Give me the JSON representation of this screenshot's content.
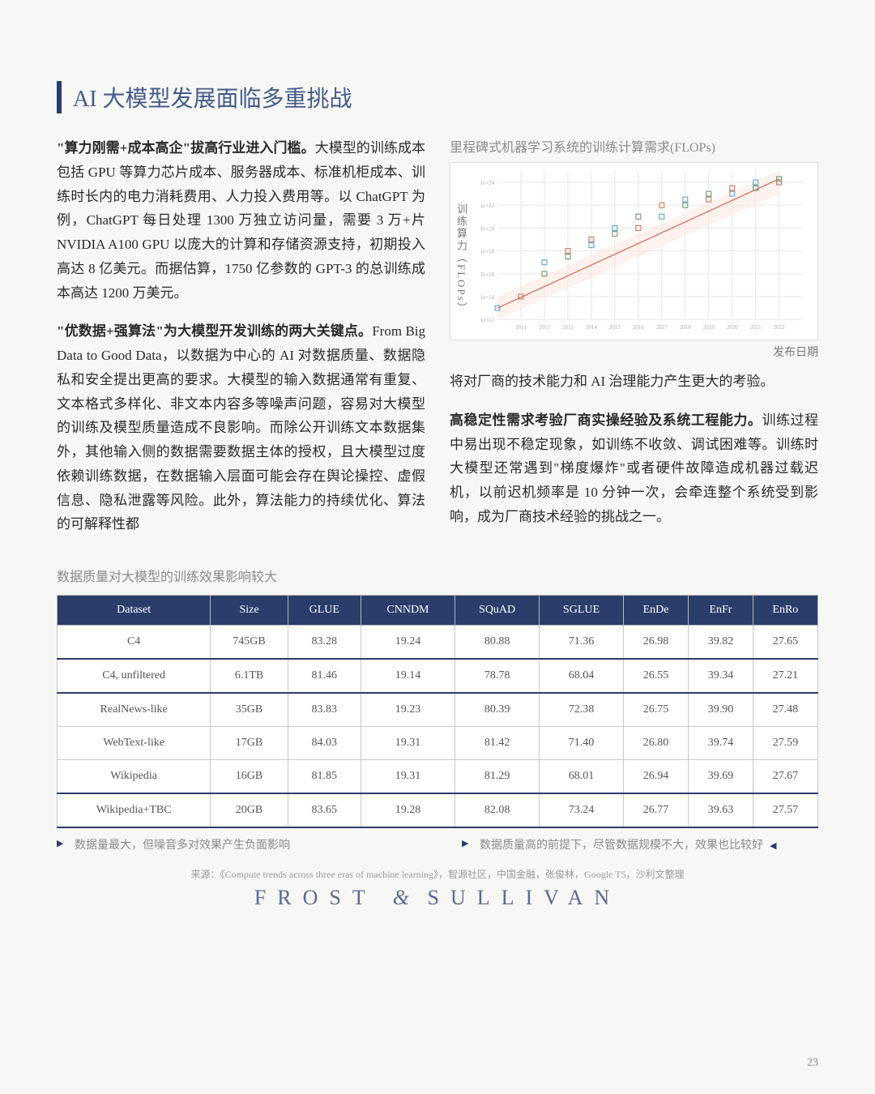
{
  "title": "AI 大模型发展面临多重挑战",
  "left_paras": [
    {
      "lead": "\"算力刚需+成本高企\"拔高行业进入门槛。",
      "body": "大模型的训练成本包括 GPU 等算力芯片成本、服务器成本、标准机柜成本、训练时长内的电力消耗费用、人力投入费用等。以 ChatGPT 为例，ChatGPT 每日处理 1300 万独立访问量，需要 3 万+片 NVIDIA A100 GPU 以庞大的计算和存储资源支持，初期投入高达 8 亿美元。而据估算，1750 亿参数的 GPT-3 的总训练成本高达 1200 万美元。"
    },
    {
      "lead": "\"优数据+强算法\"为大模型开发训练的两大关键点。",
      "body": "From Big Data to Good Data，以数据为中心的 AI 对数据质量、数据隐私和安全提出更高的要求。大模型的输入数据通常有重复、文本格式多样化、非文本内容多等噪声问题，容易对大模型的训练及模型质量造成不良影响。而除公开训练文本数据集外，其他输入侧的数据需要数据主体的授权，且大模型过度依赖训练数据，在数据输入层面可能会存在舆论操控、虚假信息、隐私泄露等风险。此外，算法能力的持续优化、算法的可解释性都"
    }
  ],
  "right_cont": "将对厂商的技术能力和 AI 治理能力产生更大的考验。",
  "right_para": {
    "lead": "高稳定性需求考验厂商实操经验及系统工程能力。",
    "body": "训练过程中易出现不稳定现象，如训练不收敛、调试困难等。训练时大模型还常遇到\"梯度爆炸\"或者硬件故障造成机器过载迟机，以前迟机频率是 10 分钟一次，会牵连整个系统受到影响，成为厂商技术经验的挑战之一。"
  },
  "chart": {
    "title": "里程碑式机器学习系统的训练计算需求(FLOPs)",
    "ylabel": "训练算力（FLOPs）",
    "xlabel": "发布日期",
    "type": "scatter",
    "xlim": [
      2010,
      2023
    ],
    "ylim_log10": [
      12,
      25
    ],
    "background_color": "#ffffff",
    "grid_color": "#e6e6e6",
    "guide_band_color": "#fde6e0",
    "trend_color": "#d08070",
    "marker_colors": [
      "#6fa8d6",
      "#d47c6a",
      "#7aa07a"
    ],
    "points": [
      [
        2010,
        13
      ],
      [
        2011,
        14
      ],
      [
        2012,
        16
      ],
      [
        2012,
        17
      ],
      [
        2013,
        18
      ],
      [
        2013,
        17.5
      ],
      [
        2014,
        18.5
      ],
      [
        2014,
        19
      ],
      [
        2015,
        19.5
      ],
      [
        2015,
        20
      ],
      [
        2016,
        20
      ],
      [
        2016,
        21
      ],
      [
        2017,
        21
      ],
      [
        2017,
        22
      ],
      [
        2018,
        22
      ],
      [
        2018,
        22.5
      ],
      [
        2019,
        22.5
      ],
      [
        2019,
        23
      ],
      [
        2020,
        23
      ],
      [
        2020,
        23.5
      ],
      [
        2021,
        23.5
      ],
      [
        2021,
        24
      ],
      [
        2022,
        24
      ],
      [
        2022,
        24.3
      ]
    ],
    "xticks": [
      2011,
      2012,
      2013,
      2014,
      2015,
      2016,
      2017,
      2018,
      2019,
      2020,
      2021,
      2022
    ]
  },
  "table_caption": "数据质量对大模型的训练效果影响较大",
  "table": {
    "columns": [
      "Dataset",
      "Size",
      "GLUE",
      "CNNDM",
      "SQuAD",
      "SGLUE",
      "EnDe",
      "EnFr",
      "EnRo"
    ],
    "rows": [
      {
        "cells": [
          "C4",
          "745GB",
          "83.28",
          "19.24",
          "80.88",
          "71.36",
          "26.98",
          "39.82",
          "27.65"
        ],
        "highlight": false
      },
      {
        "cells": [
          "C4, unfiltered",
          "6.1TB",
          "81.46",
          "19.14",
          "78.78",
          "68.04",
          "26.55",
          "39.34",
          "27.21"
        ],
        "highlight": true
      },
      {
        "cells": [
          "RealNews-like",
          "35GB",
          "83.83",
          "19.23",
          "80.39",
          "72.38",
          "26.75",
          "39.90",
          "27.48"
        ],
        "highlight": false
      },
      {
        "cells": [
          "WebText-like",
          "17GB",
          "84.03",
          "19.31",
          "81.42",
          "71.40",
          "26.80",
          "39.74",
          "27.59"
        ],
        "highlight": false
      },
      {
        "cells": [
          "Wikipedia",
          "16GB",
          "81.85",
          "19.31",
          "81.29",
          "68.01",
          "26.94",
          "39.69",
          "27.67"
        ],
        "highlight": false
      },
      {
        "cells": [
          "Wikipedia+TBC",
          "20GB",
          "83.65",
          "19.28",
          "82.08",
          "73.24",
          "26.77",
          "39.63",
          "27.57"
        ],
        "highlight": true
      }
    ],
    "header_bg": "#2b3d6b",
    "header_color": "#ffffff",
    "border_color": "#c8c8c8",
    "highlight_border": "#2b3d6b"
  },
  "annotations": {
    "left": "数据量最大，但噪音多对效果产生负面影响",
    "right": "数据质量高的前提下，尽管数据规模不大，效果也比较好"
  },
  "source": "来源：《Compute trends across three eras of machine learning》，智源社区，中国金融，张俊林，Google T5，沙利文整理",
  "brand_left": "FROST",
  "brand_amp": "&",
  "brand_right": "SULLIVAN",
  "page_number": "23"
}
